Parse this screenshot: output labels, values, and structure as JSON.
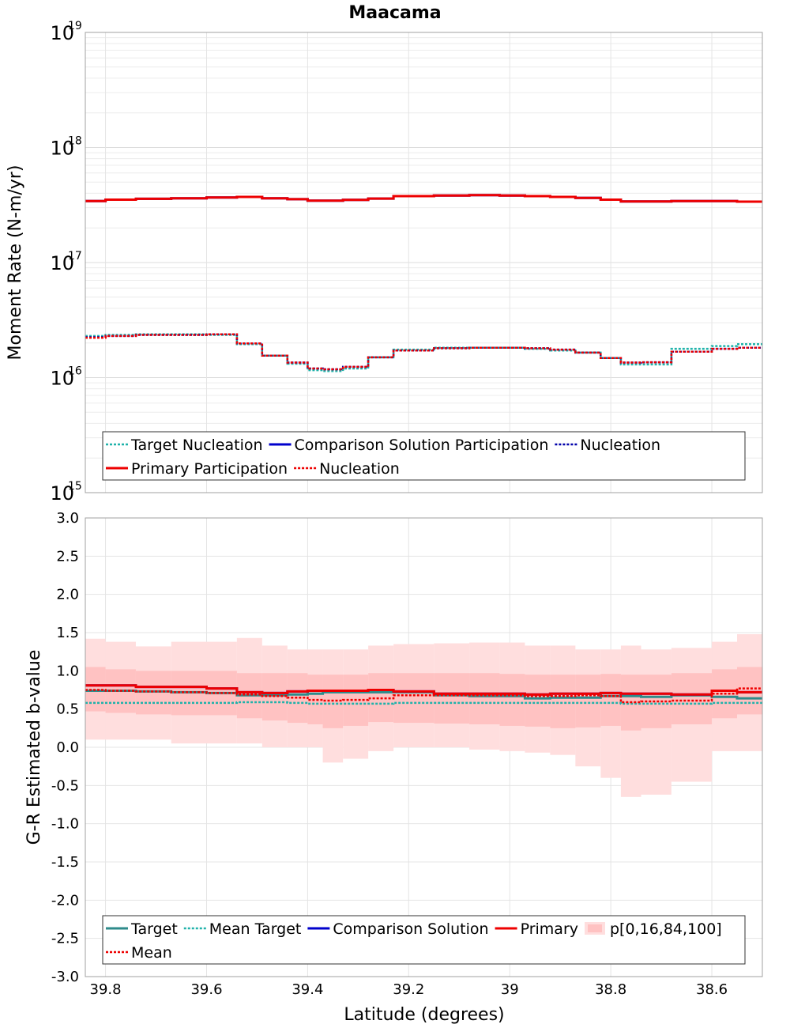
{
  "chart_data": [
    {
      "type": "line",
      "title": "Maacama",
      "xlabel": "",
      "ylabel": "Moment Rate (N-m/yr)",
      "xlim": [
        39.84,
        38.5
      ],
      "ylim": [
        1000000000000000.0,
        1e+19
      ],
      "yscale": "log",
      "y_ticks": [
        {
          "base": "10",
          "exp": "19",
          "value": 1e+19
        },
        {
          "base": "10",
          "exp": "18",
          "value": 1e+18
        },
        {
          "base": "10",
          "exp": "17",
          "value": 1e+17
        },
        {
          "base": "10",
          "exp": "16",
          "value": 1e+16
        },
        {
          "base": "10",
          "exp": "15",
          "value": 1000000000000000.0
        }
      ],
      "x_ticks": [
        39.8,
        39.6,
        39.4,
        39.2,
        39,
        38.8,
        38.6
      ],
      "grid": true,
      "legend_placement": "bottom",
      "bin_edges": [
        39.84,
        39.8,
        39.74,
        39.67,
        39.6,
        39.54,
        39.49,
        39.44,
        39.4,
        39.37,
        39.33,
        39.28,
        39.23,
        39.15,
        39.08,
        39.02,
        38.97,
        38.92,
        38.87,
        38.82,
        38.78,
        38.74,
        38.68,
        38.6,
        38.55,
        38.5
      ],
      "series": [
        {
          "name": "Target Nucleation",
          "style": "dotted",
          "color": "#20b2aa",
          "values": [
            2.3e+16,
            2.35e+16,
            2.38e+16,
            2.38e+16,
            2.35e+16,
            1.95e+16,
            1.55e+16,
            1.32e+16,
            1.16e+16,
            1.14e+16,
            1.2e+16,
            1.5e+16,
            1.75e+16,
            1.82e+16,
            1.82e+16,
            1.82e+16,
            1.78e+16,
            1.72e+16,
            1.65e+16,
            1.48e+16,
            1.3e+16,
            1.3e+16,
            1.78e+16,
            1.88e+16,
            1.95e+16,
            1.85e+16
          ]
        },
        {
          "name": "Comparison Solution Participation",
          "style": "solid",
          "color": "#0000cc",
          "values": [
            3.42e+17,
            3.52e+17,
            3.58e+17,
            3.62e+17,
            3.68e+17,
            3.72e+17,
            3.62e+17,
            3.55e+17,
            3.45e+17,
            3.45e+17,
            3.5e+17,
            3.6e+17,
            3.78e+17,
            3.82e+17,
            3.85e+17,
            3.82e+17,
            3.78e+17,
            3.72e+17,
            3.65e+17,
            3.52e+17,
            3.4e+17,
            3.4e+17,
            3.42e+17,
            3.42e+17,
            3.38e+17,
            3.22e+17
          ]
        },
        {
          "name": "Nucleation",
          "style": "dotted",
          "color": "#0000aa",
          "values": [
            2.24e+16,
            2.3e+16,
            2.35e+16,
            2.35e+16,
            2.38e+16,
            1.98e+16,
            1.55e+16,
            1.35e+16,
            1.2e+16,
            1.18e+16,
            1.24e+16,
            1.5e+16,
            1.72e+16,
            1.8e+16,
            1.82e+16,
            1.82e+16,
            1.8e+16,
            1.75e+16,
            1.65e+16,
            1.48e+16,
            1.35e+16,
            1.36e+16,
            1.68e+16,
            1.78e+16,
            1.82e+16,
            1.68e+16
          ]
        },
        {
          "name": "Primary Participation",
          "style": "solid",
          "color": "#ee0000",
          "values": [
            3.42e+17,
            3.52e+17,
            3.58e+17,
            3.62e+17,
            3.68e+17,
            3.72e+17,
            3.62e+17,
            3.55e+17,
            3.45e+17,
            3.45e+17,
            3.5e+17,
            3.6e+17,
            3.78e+17,
            3.82e+17,
            3.85e+17,
            3.82e+17,
            3.78e+17,
            3.72e+17,
            3.65e+17,
            3.52e+17,
            3.4e+17,
            3.4e+17,
            3.42e+17,
            3.42e+17,
            3.38e+17,
            3.22e+17
          ]
        },
        {
          "name": "Nucleation",
          "style": "dotted",
          "color": "#ee0000",
          "values": [
            2.22e+16,
            2.3e+16,
            2.35e+16,
            2.35e+16,
            2.38e+16,
            1.98e+16,
            1.55e+16,
            1.35e+16,
            1.2e+16,
            1.18e+16,
            1.24e+16,
            1.5e+16,
            1.72e+16,
            1.8e+16,
            1.82e+16,
            1.82e+16,
            1.8e+16,
            1.75e+16,
            1.65e+16,
            1.48e+16,
            1.35e+16,
            1.36e+16,
            1.68e+16,
            1.78e+16,
            1.82e+16,
            1.68e+16
          ]
        }
      ],
      "legend": {
        "rows": [
          [
            {
              "label": "Target Nucleation",
              "color": "#20b2aa",
              "style": "dotted"
            },
            {
              "label": "Comparison Solution Participation",
              "color": "#0000cc",
              "style": "solid"
            },
            {
              "label": "Nucleation",
              "color": "#0000aa",
              "style": "dotted"
            }
          ],
          [
            {
              "label": "Primary Participation",
              "color": "#ee0000",
              "style": "solid"
            },
            {
              "label": "Nucleation",
              "color": "#ee0000",
              "style": "dotted"
            }
          ]
        ]
      }
    },
    {
      "type": "line",
      "title": "",
      "xlabel": "Latitude (degrees)",
      "ylabel": "G-R Estimated b-value",
      "xlim": [
        39.84,
        38.5
      ],
      "ylim": [
        -3.0,
        3.0
      ],
      "y_ticks": [
        "3.0",
        "2.5",
        "2.0",
        "1.5",
        "1.0",
        "0.5",
        "0.0",
        "-0.5",
        "-1.0",
        "-1.5",
        "-2.0",
        "-2.5",
        "-3.0"
      ],
      "x_ticks": [
        "39.8",
        "39.6",
        "39.4",
        "39.2",
        "39",
        "38.8",
        "38.6"
      ],
      "grid": true,
      "legend_placement": "bottom",
      "bin_edges": [
        39.84,
        39.8,
        39.74,
        39.67,
        39.6,
        39.54,
        39.49,
        39.44,
        39.4,
        39.37,
        39.33,
        39.28,
        39.23,
        39.15,
        39.08,
        39.02,
        38.97,
        38.92,
        38.87,
        38.82,
        38.78,
        38.74,
        38.68,
        38.6,
        38.55,
        38.5
      ],
      "band_outer": {
        "name": "p[0,16,84,100]",
        "min": [
          0.1,
          0.1,
          0.1,
          0.05,
          0.05,
          0.05,
          0.0,
          0.0,
          0.0,
          -0.2,
          -0.15,
          -0.05,
          0.0,
          0.0,
          -0.03,
          -0.05,
          -0.07,
          -0.1,
          -0.25,
          -0.4,
          -0.65,
          -0.62,
          -0.45,
          -0.05,
          -0.05,
          -0.5
        ],
        "max": [
          1.42,
          1.38,
          1.32,
          1.38,
          1.38,
          1.43,
          1.33,
          1.28,
          1.28,
          1.28,
          1.28,
          1.33,
          1.35,
          1.36,
          1.37,
          1.37,
          1.33,
          1.33,
          1.28,
          1.28,
          1.33,
          1.28,
          1.3,
          1.38,
          1.48,
          1.38
        ]
      },
      "band_inner": {
        "min": [
          0.47,
          0.45,
          0.43,
          0.42,
          0.42,
          0.38,
          0.35,
          0.32,
          0.3,
          0.25,
          0.28,
          0.33,
          0.32,
          0.31,
          0.3,
          0.28,
          0.27,
          0.25,
          0.26,
          0.28,
          0.22,
          0.25,
          0.3,
          0.38,
          0.43,
          0.46
        ],
        "max": [
          1.05,
          1.02,
          1.0,
          1.0,
          1.0,
          0.97,
          0.97,
          0.97,
          0.95,
          0.95,
          0.95,
          0.97,
          0.97,
          0.97,
          0.97,
          0.96,
          0.95,
          0.95,
          0.95,
          0.96,
          0.95,
          0.95,
          0.97,
          1.02,
          1.05,
          1.08
        ]
      },
      "series": [
        {
          "name": "Target",
          "style": "solid",
          "color": "#2e8b8b",
          "values": [
            0.74,
            0.74,
            0.73,
            0.72,
            0.71,
            0.68,
            0.68,
            0.69,
            0.7,
            0.72,
            0.72,
            0.72,
            0.72,
            0.68,
            0.67,
            0.67,
            0.64,
            0.65,
            0.65,
            0.67,
            0.67,
            0.66,
            0.68,
            0.66,
            0.64,
            0.69
          ]
        },
        {
          "name": "Mean Target",
          "style": "dotted",
          "color": "#20b2aa",
          "values": [
            0.58,
            0.58,
            0.58,
            0.58,
            0.58,
            0.59,
            0.59,
            0.58,
            0.57,
            0.57,
            0.57,
            0.57,
            0.58,
            0.58,
            0.58,
            0.58,
            0.58,
            0.58,
            0.58,
            0.58,
            0.57,
            0.57,
            0.57,
            0.58,
            0.58,
            0.58
          ]
        },
        {
          "name": "Comparison Solution",
          "style": "solid",
          "color": "#0000cc",
          "values": [
            0.81,
            0.81,
            0.79,
            0.79,
            0.77,
            0.72,
            0.71,
            0.73,
            0.74,
            0.74,
            0.74,
            0.75,
            0.73,
            0.7,
            0.7,
            0.7,
            0.69,
            0.7,
            0.7,
            0.71,
            0.7,
            0.7,
            0.69,
            0.74,
            0.72,
            0.8
          ]
        },
        {
          "name": "Primary",
          "style": "solid",
          "color": "#ee0000",
          "values": [
            0.81,
            0.81,
            0.79,
            0.79,
            0.77,
            0.72,
            0.71,
            0.73,
            0.74,
            0.74,
            0.74,
            0.75,
            0.73,
            0.7,
            0.7,
            0.7,
            0.69,
            0.7,
            0.7,
            0.71,
            0.7,
            0.7,
            0.69,
            0.74,
            0.72,
            0.8
          ]
        },
        {
          "name": "Mean",
          "style": "dotted",
          "color": "#ee0000",
          "values": [
            0.75,
            0.74,
            0.73,
            0.72,
            0.71,
            0.69,
            0.67,
            0.65,
            0.62,
            0.61,
            0.62,
            0.64,
            0.68,
            0.68,
            0.68,
            0.68,
            0.67,
            0.67,
            0.68,
            0.67,
            0.59,
            0.6,
            0.61,
            0.7,
            0.77,
            0.79
          ]
        }
      ],
      "legend": {
        "rows": [
          [
            {
              "label": "Target",
              "color": "#2e8b8b",
              "style": "solid"
            },
            {
              "label": "Mean Target",
              "color": "#20b2aa",
              "style": "dotted"
            },
            {
              "label": "Comparison Solution",
              "color": "#0000cc",
              "style": "solid"
            },
            {
              "label": "Primary",
              "color": "#ee0000",
              "style": "solid"
            },
            {
              "label": "p[0,16,84,100]",
              "color": "#ffc0c0",
              "style": "fill"
            }
          ],
          [
            {
              "label": "Mean",
              "color": "#ee0000",
              "style": "dotted"
            }
          ]
        ]
      }
    }
  ]
}
